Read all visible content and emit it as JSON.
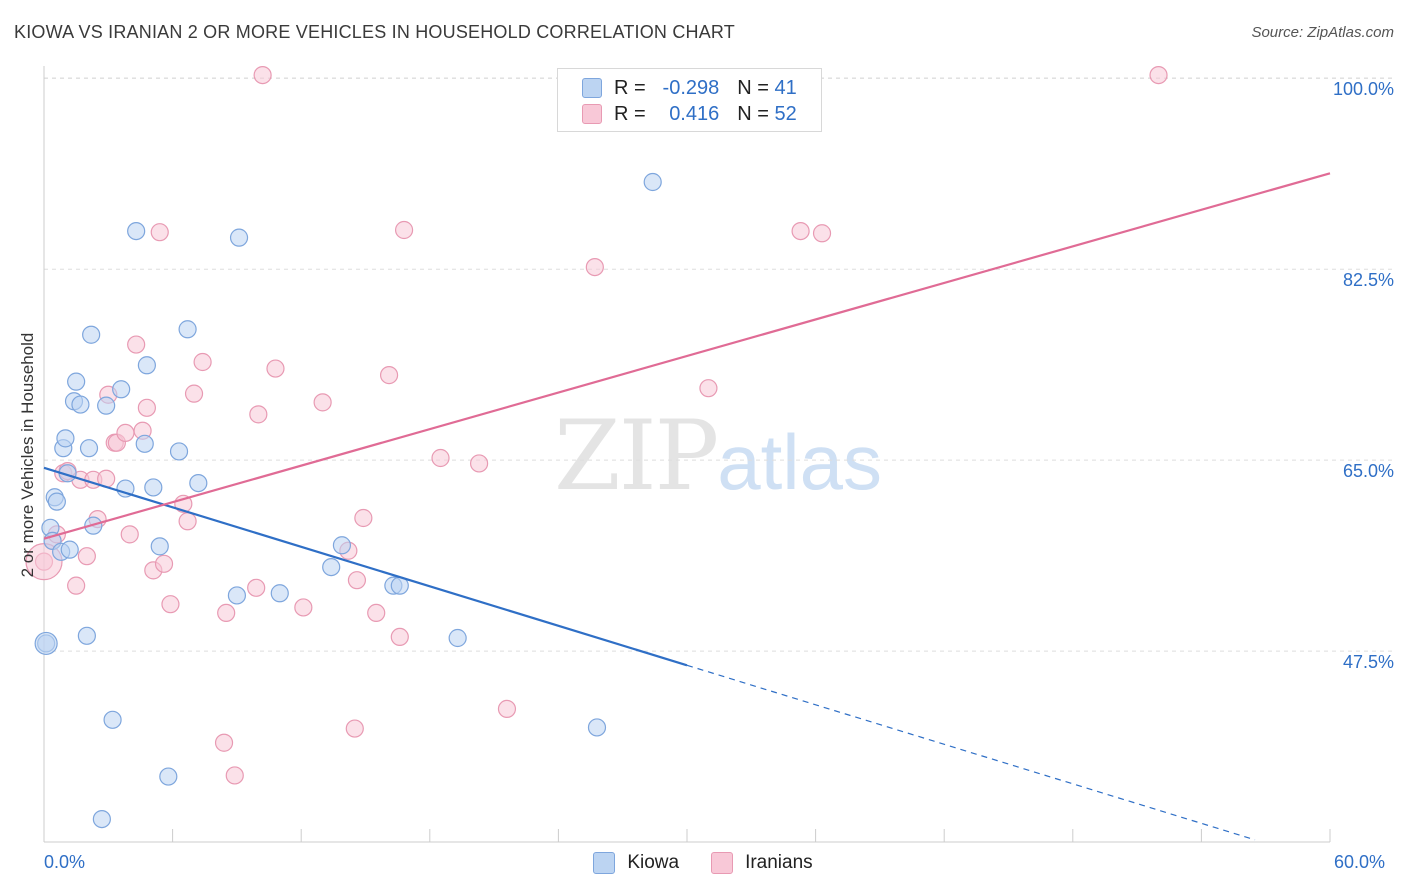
{
  "header": {
    "title": "KIOWA VS IRANIAN 2 OR MORE VEHICLES IN HOUSEHOLD CORRELATION CHART",
    "source": "Source: ZipAtlas.com"
  },
  "watermark": {
    "zip": "ZIP",
    "atlas": "atlas"
  },
  "legend": {
    "rows": [
      {
        "r_label": "R =",
        "r_value": "-0.298",
        "n_label": "N =",
        "n_value": "41",
        "color": "#a9c6ee"
      },
      {
        "r_label": "R =",
        "r_value": "0.416",
        "n_label": "N =",
        "n_value": "52",
        "color": "#f6b3c8"
      }
    ]
  },
  "colors": {
    "kiowa_fill": "#bcd4f2",
    "kiowa_stroke": "#7ea6dd",
    "kiowa_line": "#2f6fc6",
    "iran_fill": "#f8c8d7",
    "iran_stroke": "#e89ab3",
    "iran_line": "#e06b95",
    "grid": "#dddddd",
    "tick_text": "#2f6fc6"
  },
  "chart_data": {
    "type": "scatter",
    "title": "KIOWA VS IRANIAN 2 OR MORE VEHICLES IN HOUSEHOLD CORRELATION CHART",
    "xlabel": "",
    "ylabel": "2 or more Vehicles in Household",
    "xlim": [
      0,
      60
    ],
    "ylim": [
      30,
      101.5
    ],
    "x_tick_labels": [
      "0.0%",
      "60.0%"
    ],
    "y_ticks": [
      47.5,
      65.0,
      82.5,
      100.0
    ],
    "y_tick_labels": [
      "47.5%",
      "65.0%",
      "82.5%",
      "100.0%"
    ],
    "grid": true,
    "legend_position": "bottom",
    "series": [
      {
        "name": "Kiowa",
        "r": -0.298,
        "n": 41,
        "trend": {
          "x0": 0,
          "y0": 64.3,
          "x1": 30,
          "y1": 46.2,
          "dashed_to_x": 56.5,
          "dashed_to_y": 30.2
        },
        "points": [
          [
            0.1,
            48.2
          ],
          [
            0.3,
            58.8
          ],
          [
            0.4,
            57.6
          ],
          [
            0.5,
            61.6
          ],
          [
            0.6,
            61.2
          ],
          [
            0.8,
            56.6
          ],
          [
            0.9,
            66.1
          ],
          [
            1.0,
            67.0
          ],
          [
            1.1,
            63.8
          ],
          [
            1.2,
            56.8
          ],
          [
            1.4,
            70.4
          ],
          [
            1.5,
            72.2
          ],
          [
            1.7,
            70.1
          ],
          [
            2.0,
            48.9
          ],
          [
            2.1,
            66.1
          ],
          [
            2.2,
            76.5
          ],
          [
            2.3,
            59.0
          ],
          [
            2.7,
            32.1
          ],
          [
            2.9,
            70.0
          ],
          [
            3.2,
            41.2
          ],
          [
            3.6,
            71.5
          ],
          [
            3.8,
            62.4
          ],
          [
            4.3,
            86.0
          ],
          [
            4.7,
            66.5
          ],
          [
            4.8,
            73.7
          ],
          [
            5.1,
            62.5
          ],
          [
            5.4,
            57.1
          ],
          [
            5.8,
            36.0
          ],
          [
            6.3,
            65.8
          ],
          [
            6.7,
            77.0
          ],
          [
            7.2,
            62.9
          ],
          [
            9.0,
            52.6
          ],
          [
            9.1,
            85.4
          ],
          [
            11.0,
            52.8
          ],
          [
            13.4,
            55.2
          ],
          [
            13.9,
            57.2
          ],
          [
            16.3,
            53.5
          ],
          [
            16.6,
            53.5
          ],
          [
            19.3,
            48.7
          ],
          [
            25.8,
            40.5
          ],
          [
            28.4,
            90.5
          ]
        ]
      },
      {
        "name": "Iranians",
        "r": 0.416,
        "n": 52,
        "trend": {
          "x0": 0,
          "y0": 57.8,
          "x1": 60,
          "y1": 91.3
        },
        "points": [
          [
            0.0,
            55.7
          ],
          [
            0.4,
            57.6
          ],
          [
            0.6,
            58.2
          ],
          [
            0.9,
            63.8
          ],
          [
            1.1,
            64.0
          ],
          [
            1.5,
            53.5
          ],
          [
            1.7,
            63.2
          ],
          [
            2.0,
            56.2
          ],
          [
            2.3,
            63.2
          ],
          [
            2.5,
            59.6
          ],
          [
            2.9,
            63.3
          ],
          [
            3.0,
            71.0
          ],
          [
            3.3,
            66.6
          ],
          [
            3.4,
            66.6
          ],
          [
            3.8,
            67.5
          ],
          [
            4.0,
            58.2
          ],
          [
            4.3,
            75.6
          ],
          [
            4.6,
            67.7
          ],
          [
            4.8,
            69.8
          ],
          [
            5.1,
            54.9
          ],
          [
            5.4,
            85.9
          ],
          [
            5.6,
            55.5
          ],
          [
            5.9,
            51.8
          ],
          [
            6.5,
            61.0
          ],
          [
            6.7,
            59.4
          ],
          [
            7.0,
            71.1
          ],
          [
            7.4,
            74.0
          ],
          [
            8.5,
            51.0
          ],
          [
            8.4,
            39.1
          ],
          [
            8.9,
            36.1
          ],
          [
            9.9,
            53.3
          ],
          [
            10.0,
            69.2
          ],
          [
            10.2,
            100.3
          ],
          [
            10.8,
            73.4
          ],
          [
            12.1,
            51.5
          ],
          [
            13.0,
            70.3
          ],
          [
            14.2,
            56.7
          ],
          [
            14.5,
            40.4
          ],
          [
            14.6,
            54.0
          ],
          [
            14.9,
            59.7
          ],
          [
            15.5,
            51.0
          ],
          [
            16.1,
            72.8
          ],
          [
            16.6,
            48.8
          ],
          [
            16.8,
            86.1
          ],
          [
            18.5,
            65.2
          ],
          [
            20.3,
            64.7
          ],
          [
            21.6,
            42.2
          ],
          [
            25.7,
            82.7
          ],
          [
            31.0,
            71.6
          ],
          [
            35.3,
            86.0
          ],
          [
            36.3,
            85.8
          ],
          [
            52.0,
            100.3
          ]
        ]
      }
    ]
  }
}
